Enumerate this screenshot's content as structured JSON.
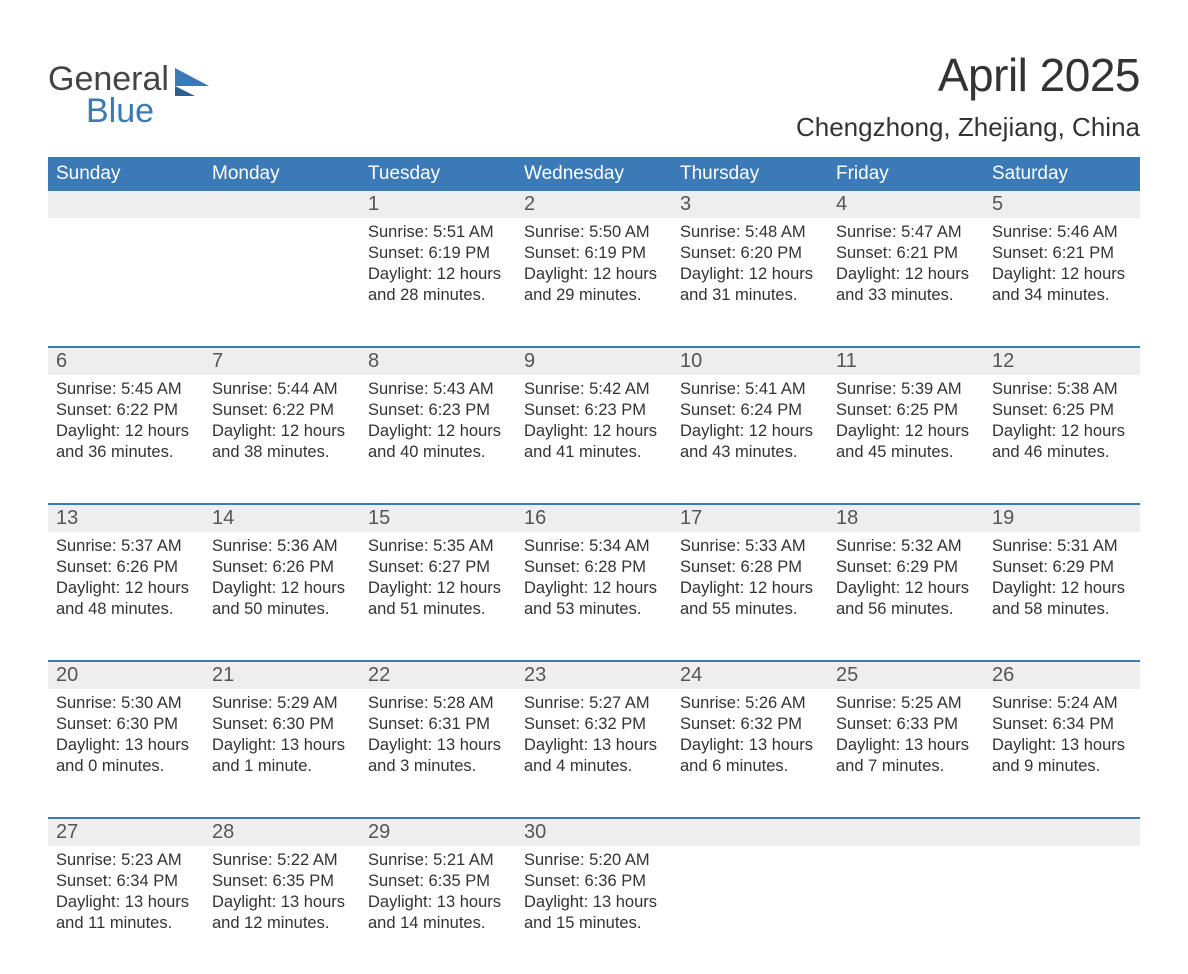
{
  "brand": {
    "line1": "General",
    "line2": "Blue"
  },
  "title": "April 2025",
  "location": "Chengzhong, Zhejiang, China",
  "colors": {
    "header_bg": "#3b7ab7",
    "header_text": "#ffffff",
    "date_band_bg": "#eeeeee",
    "week_divider": "#3b7ab7",
    "body_text": "#333333",
    "logo_gray": "#444444",
    "logo_blue": "#3b7ab7",
    "page_bg": "#ffffff"
  },
  "fonts": {
    "family": "Arial, Helvetica, sans-serif",
    "month_title_pt": 34,
    "location_pt": 20,
    "dow_pt": 14,
    "date_num_pt": 15,
    "body_pt": 12
  },
  "days_of_week": [
    "Sunday",
    "Monday",
    "Tuesday",
    "Wednesday",
    "Thursday",
    "Friday",
    "Saturday"
  ],
  "weeks": [
    {
      "days": [
        {
          "date": "",
          "sunrise": "",
          "sunset": "",
          "daylight": ""
        },
        {
          "date": "",
          "sunrise": "",
          "sunset": "",
          "daylight": ""
        },
        {
          "date": "1",
          "sunrise": "Sunrise: 5:51 AM",
          "sunset": "Sunset: 6:19 PM",
          "daylight": "Daylight: 12 hours and 28 minutes."
        },
        {
          "date": "2",
          "sunrise": "Sunrise: 5:50 AM",
          "sunset": "Sunset: 6:19 PM",
          "daylight": "Daylight: 12 hours and 29 minutes."
        },
        {
          "date": "3",
          "sunrise": "Sunrise: 5:48 AM",
          "sunset": "Sunset: 6:20 PM",
          "daylight": "Daylight: 12 hours and 31 minutes."
        },
        {
          "date": "4",
          "sunrise": "Sunrise: 5:47 AM",
          "sunset": "Sunset: 6:21 PM",
          "daylight": "Daylight: 12 hours and 33 minutes."
        },
        {
          "date": "5",
          "sunrise": "Sunrise: 5:46 AM",
          "sunset": "Sunset: 6:21 PM",
          "daylight": "Daylight: 12 hours and 34 minutes."
        }
      ]
    },
    {
      "days": [
        {
          "date": "6",
          "sunrise": "Sunrise: 5:45 AM",
          "sunset": "Sunset: 6:22 PM",
          "daylight": "Daylight: 12 hours and 36 minutes."
        },
        {
          "date": "7",
          "sunrise": "Sunrise: 5:44 AM",
          "sunset": "Sunset: 6:22 PM",
          "daylight": "Daylight: 12 hours and 38 minutes."
        },
        {
          "date": "8",
          "sunrise": "Sunrise: 5:43 AM",
          "sunset": "Sunset: 6:23 PM",
          "daylight": "Daylight: 12 hours and 40 minutes."
        },
        {
          "date": "9",
          "sunrise": "Sunrise: 5:42 AM",
          "sunset": "Sunset: 6:23 PM",
          "daylight": "Daylight: 12 hours and 41 minutes."
        },
        {
          "date": "10",
          "sunrise": "Sunrise: 5:41 AM",
          "sunset": "Sunset: 6:24 PM",
          "daylight": "Daylight: 12 hours and 43 minutes."
        },
        {
          "date": "11",
          "sunrise": "Sunrise: 5:39 AM",
          "sunset": "Sunset: 6:25 PM",
          "daylight": "Daylight: 12 hours and 45 minutes."
        },
        {
          "date": "12",
          "sunrise": "Sunrise: 5:38 AM",
          "sunset": "Sunset: 6:25 PM",
          "daylight": "Daylight: 12 hours and 46 minutes."
        }
      ]
    },
    {
      "days": [
        {
          "date": "13",
          "sunrise": "Sunrise: 5:37 AM",
          "sunset": "Sunset: 6:26 PM",
          "daylight": "Daylight: 12 hours and 48 minutes."
        },
        {
          "date": "14",
          "sunrise": "Sunrise: 5:36 AM",
          "sunset": "Sunset: 6:26 PM",
          "daylight": "Daylight: 12 hours and 50 minutes."
        },
        {
          "date": "15",
          "sunrise": "Sunrise: 5:35 AM",
          "sunset": "Sunset: 6:27 PM",
          "daylight": "Daylight: 12 hours and 51 minutes."
        },
        {
          "date": "16",
          "sunrise": "Sunrise: 5:34 AM",
          "sunset": "Sunset: 6:28 PM",
          "daylight": "Daylight: 12 hours and 53 minutes."
        },
        {
          "date": "17",
          "sunrise": "Sunrise: 5:33 AM",
          "sunset": "Sunset: 6:28 PM",
          "daylight": "Daylight: 12 hours and 55 minutes."
        },
        {
          "date": "18",
          "sunrise": "Sunrise: 5:32 AM",
          "sunset": "Sunset: 6:29 PM",
          "daylight": "Daylight: 12 hours and 56 minutes."
        },
        {
          "date": "19",
          "sunrise": "Sunrise: 5:31 AM",
          "sunset": "Sunset: 6:29 PM",
          "daylight": "Daylight: 12 hours and 58 minutes."
        }
      ]
    },
    {
      "days": [
        {
          "date": "20",
          "sunrise": "Sunrise: 5:30 AM",
          "sunset": "Sunset: 6:30 PM",
          "daylight": "Daylight: 13 hours and 0 minutes."
        },
        {
          "date": "21",
          "sunrise": "Sunrise: 5:29 AM",
          "sunset": "Sunset: 6:30 PM",
          "daylight": "Daylight: 13 hours and 1 minute."
        },
        {
          "date": "22",
          "sunrise": "Sunrise: 5:28 AM",
          "sunset": "Sunset: 6:31 PM",
          "daylight": "Daylight: 13 hours and 3 minutes."
        },
        {
          "date": "23",
          "sunrise": "Sunrise: 5:27 AM",
          "sunset": "Sunset: 6:32 PM",
          "daylight": "Daylight: 13 hours and 4 minutes."
        },
        {
          "date": "24",
          "sunrise": "Sunrise: 5:26 AM",
          "sunset": "Sunset: 6:32 PM",
          "daylight": "Daylight: 13 hours and 6 minutes."
        },
        {
          "date": "25",
          "sunrise": "Sunrise: 5:25 AM",
          "sunset": "Sunset: 6:33 PM",
          "daylight": "Daylight: 13 hours and 7 minutes."
        },
        {
          "date": "26",
          "sunrise": "Sunrise: 5:24 AM",
          "sunset": "Sunset: 6:34 PM",
          "daylight": "Daylight: 13 hours and 9 minutes."
        }
      ]
    },
    {
      "days": [
        {
          "date": "27",
          "sunrise": "Sunrise: 5:23 AM",
          "sunset": "Sunset: 6:34 PM",
          "daylight": "Daylight: 13 hours and 11 minutes."
        },
        {
          "date": "28",
          "sunrise": "Sunrise: 5:22 AM",
          "sunset": "Sunset: 6:35 PM",
          "daylight": "Daylight: 13 hours and 12 minutes."
        },
        {
          "date": "29",
          "sunrise": "Sunrise: 5:21 AM",
          "sunset": "Sunset: 6:35 PM",
          "daylight": "Daylight: 13 hours and 14 minutes."
        },
        {
          "date": "30",
          "sunrise": "Sunrise: 5:20 AM",
          "sunset": "Sunset: 6:36 PM",
          "daylight": "Daylight: 13 hours and 15 minutes."
        },
        {
          "date": "",
          "sunrise": "",
          "sunset": "",
          "daylight": ""
        },
        {
          "date": "",
          "sunrise": "",
          "sunset": "",
          "daylight": ""
        },
        {
          "date": "",
          "sunrise": "",
          "sunset": "",
          "daylight": ""
        }
      ]
    }
  ]
}
